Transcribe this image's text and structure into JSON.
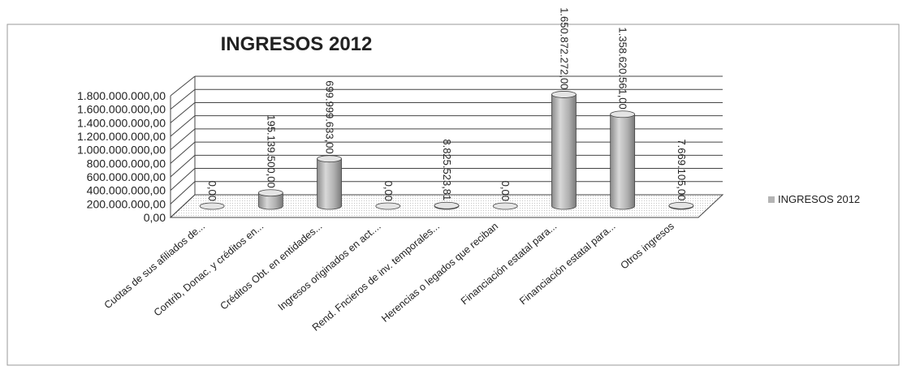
{
  "chart_data": {
    "type": "bar",
    "title": "INGRESOS 2012",
    "xlabel": "",
    "ylabel": "",
    "categories": [
      "Cuotas de sus afiliados de...",
      "Contrib, Donac. y créditos en...",
      "Créditos Obt. en entidades...",
      "Ingresos originados en act....",
      "Rend. Fncieros de inv. temporales...",
      "Herencias o legados que reciban",
      "Financiación estatal para...",
      "Financiación estatal para...",
      "Otros ingresos"
    ],
    "series": [
      {
        "name": "INGRESOS 2012",
        "values": [
          0,
          195139500,
          699999633,
          0,
          8825523.81,
          0,
          1650872272,
          1358620561,
          7669105
        ],
        "labels": [
          "0,00",
          "195.139.500,00",
          "699.999.633,00",
          "0,00",
          "8.825.523,81",
          "0,00",
          "1.650.872.272,00",
          "1.358.620.561,00",
          "7.669.105,00"
        ]
      }
    ],
    "ylim": [
      0,
      1800000000
    ],
    "yticks": [
      "0,00",
      "200.000.000,00",
      "400.000.000,00",
      "600.000.000,00",
      "800.000.000,00",
      "1.000.000.000,00",
      "1.200.000.000,00",
      "1.400.000.000,00",
      "1.600.000.000,00",
      "1.800.000.000,00"
    ],
    "grid": true,
    "legend_position": "right",
    "bar_color": "#b4b4b4"
  }
}
